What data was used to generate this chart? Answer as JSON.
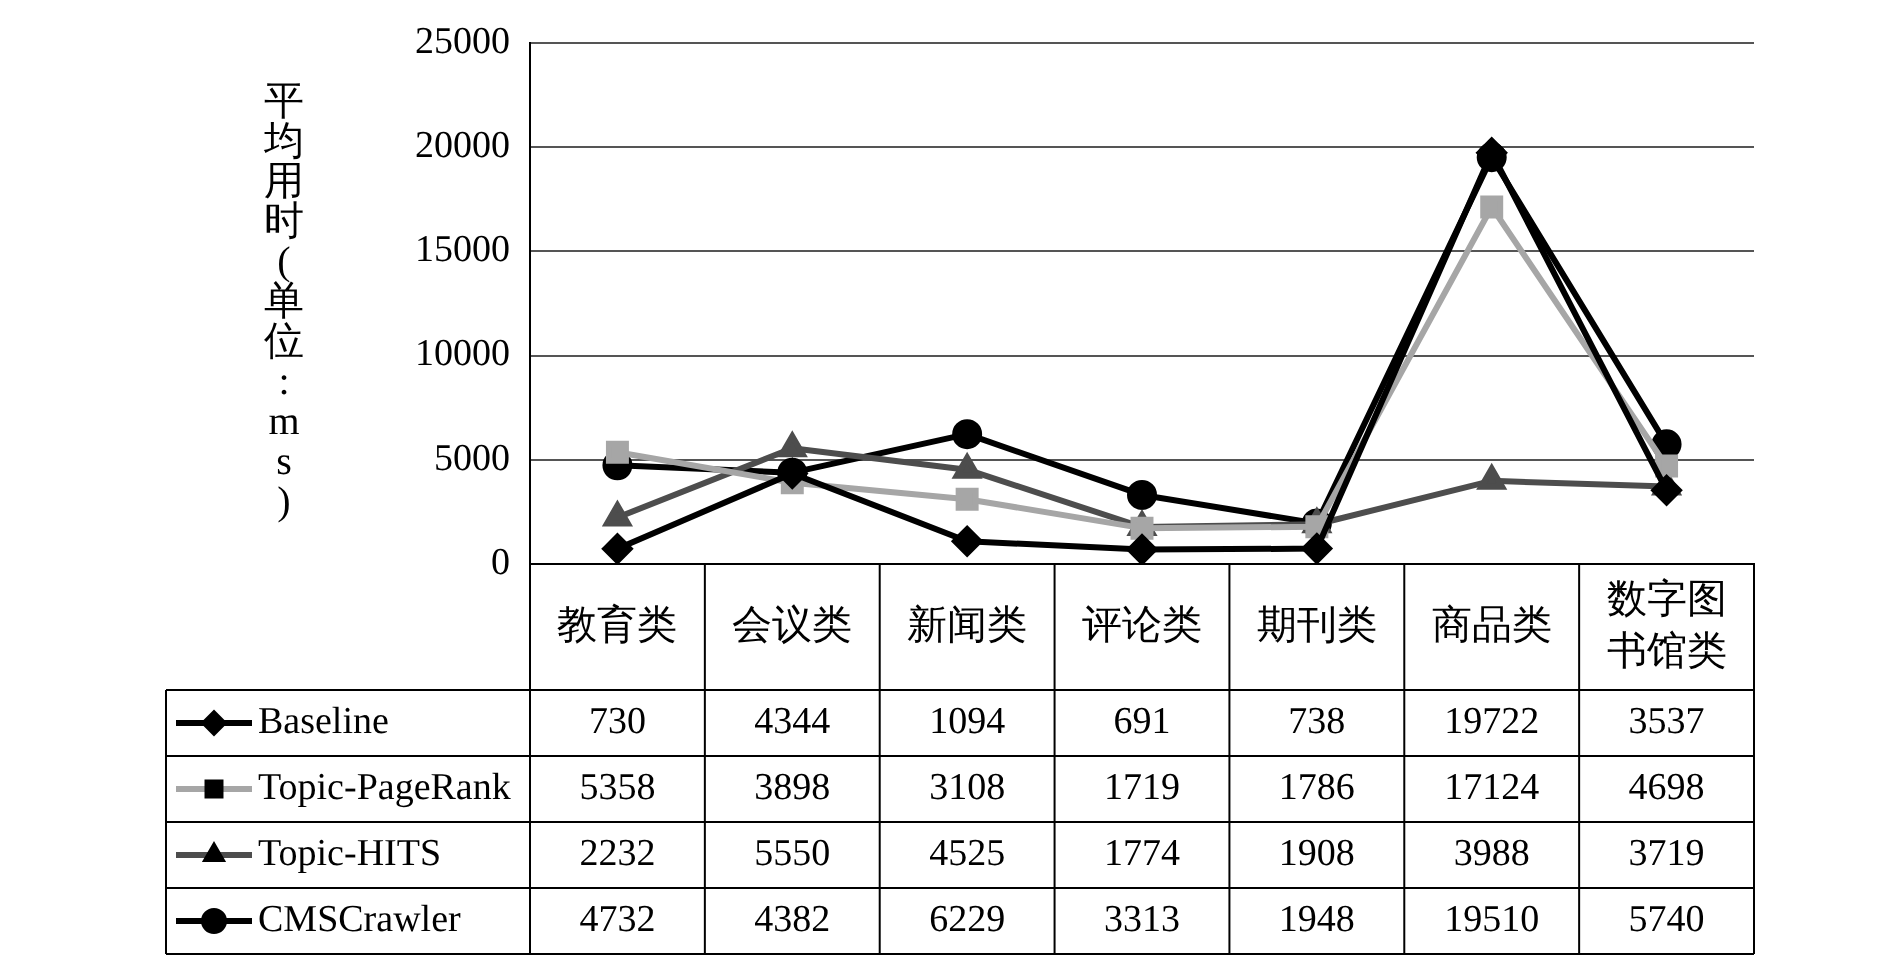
{
  "chart_data": {
    "type": "line",
    "ylabel": "平均用时(单位:ms)",
    "categories": [
      "教育类",
      "会议类",
      "新闻类",
      "评论类",
      "期刊类",
      "商品类",
      "数字图书馆类"
    ],
    "series": [
      {
        "name": "Baseline",
        "color": "#000000",
        "marker": "diamond",
        "values": [
          730,
          4344,
          1094,
          691,
          738,
          19722,
          3537
        ]
      },
      {
        "name": "Topic-PageRank",
        "color": "#a6a6a6",
        "marker": "square",
        "values": [
          5358,
          3898,
          3108,
          1719,
          1786,
          17124,
          4698
        ]
      },
      {
        "name": "Topic-HITS",
        "color": "#4d4d4d",
        "marker": "triangle",
        "values": [
          2232,
          5550,
          4525,
          1774,
          1908,
          3988,
          3719
        ]
      },
      {
        "name": "CMSCrawler",
        "color": "#000000",
        "marker": "circle",
        "values": [
          4732,
          4382,
          6229,
          3313,
          1948,
          19510,
          5740
        ]
      }
    ],
    "ylim": [
      0,
      25000
    ],
    "yticks": [
      0,
      5000,
      10000,
      15000,
      20000,
      25000
    ],
    "grid": "y",
    "legend": "bottom",
    "data_labels": true,
    "line_style": "solid"
  }
}
